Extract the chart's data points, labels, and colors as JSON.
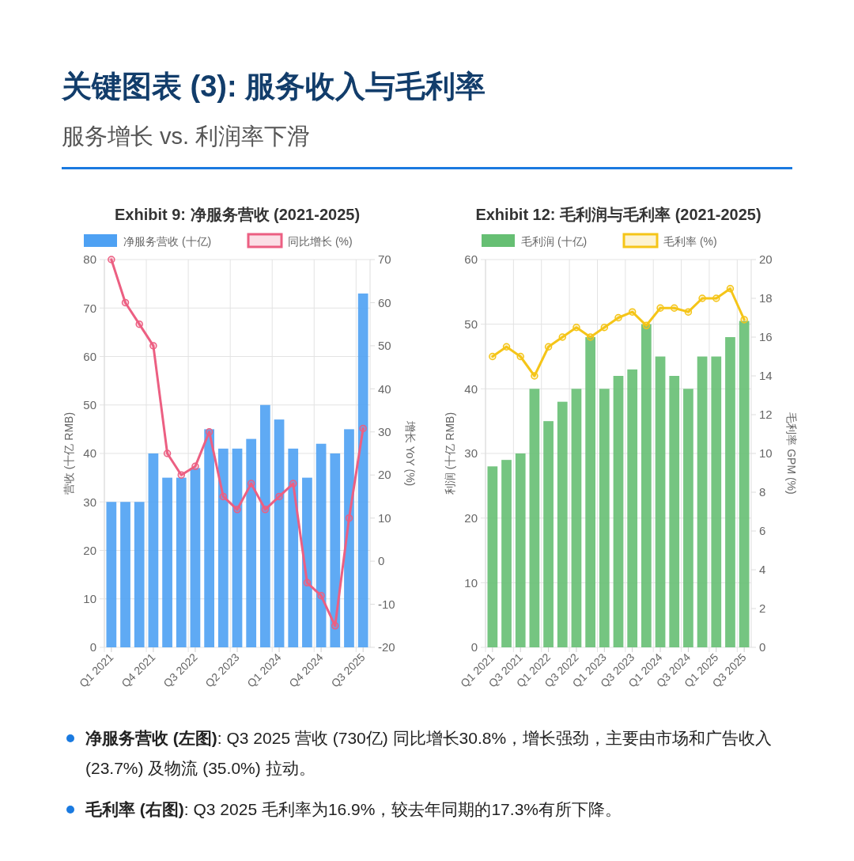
{
  "chart_data": [
    {
      "type": "other",
      "title": "关键图表 (3): 服务收入与毛利率",
      "subtitle": "服务增长 vs. 利润率下滑"
    },
    {
      "type": "bar",
      "title": "Exhibit 9: 净服务营收 (2021-2025)",
      "categories": [
        "Q1 2021",
        null,
        null,
        "Q4 2021",
        null,
        null,
        "Q3 2022",
        null,
        null,
        "Q2 2023",
        null,
        null,
        "Q1 2024",
        null,
        null,
        "Q4 2024",
        null,
        null,
        "Q3 2025"
      ],
      "series": [
        {
          "name": "净服务营收 (十亿)",
          "type": "bar",
          "color": "#4ea1f3",
          "values": [
            30,
            30,
            30,
            40,
            35,
            35,
            37,
            45,
            41,
            41,
            43,
            50,
            47,
            41,
            35,
            42,
            40,
            45,
            73
          ]
        },
        {
          "name": "同比增长 (%)",
          "type": "line",
          "axis": "y2",
          "color": "#ec5f82",
          "values": [
            70,
            60,
            55,
            50,
            25,
            20,
            22,
            30,
            15,
            12,
            18,
            12,
            15,
            18,
            -5,
            -8,
            -15,
            10,
            30.8
          ]
        }
      ],
      "ylabel": "营收 (十亿 RMB)",
      "y2label": "增长 YoY (%)",
      "ylim": [
        0,
        80
      ],
      "yticks": [
        0,
        10,
        20,
        30,
        40,
        50,
        60,
        70,
        80
      ],
      "y2lim": [
        -20,
        70
      ],
      "y2ticks": [
        -20,
        -10,
        0,
        10,
        20,
        30,
        40,
        50,
        60,
        70
      ],
      "legend": "top",
      "grid": true,
      "marker": "circle"
    },
    {
      "type": "bar",
      "title": "Exhibit 12: 毛利润与毛利率 (2021-2025)",
      "categories": [
        "Q1 2021",
        null,
        "Q3 2021",
        null,
        "Q1 2022",
        null,
        "Q3 2022",
        null,
        "Q1 2023",
        null,
        "Q3 2023",
        null,
        "Q1 2024",
        null,
        "Q3 2024",
        null,
        "Q1 2025",
        null,
        "Q3 2025"
      ],
      "series": [
        {
          "name": "毛利润 (十亿)",
          "type": "bar",
          "color": "#66bf73",
          "values": [
            28,
            29,
            30,
            40,
            35,
            38,
            40,
            48,
            40,
            42,
            43,
            50,
            45,
            42,
            40,
            45,
            45,
            48,
            50.5
          ]
        },
        {
          "name": "毛利率 (%)",
          "type": "line",
          "axis": "y2",
          "color": "#f5c518",
          "values": [
            15,
            15.5,
            15,
            14,
            15.5,
            16,
            16.5,
            16,
            16.5,
            17,
            17.3,
            16.6,
            17.5,
            17.5,
            17.3,
            18,
            18,
            18.5,
            16.9
          ]
        }
      ],
      "ylabel": "利润 (十亿 RMB)",
      "y2label": "毛利率 GPM (%)",
      "ylim": [
        0,
        60
      ],
      "yticks": [
        0,
        10,
        20,
        30,
        40,
        50,
        60
      ],
      "y2lim": [
        0,
        20
      ],
      "y2ticks": [
        0,
        2,
        4,
        6,
        8,
        10,
        12,
        14,
        16,
        18,
        20
      ],
      "legend": "top",
      "grid": true,
      "marker": "circle"
    },
    {
      "type": "other",
      "annotations": [
        "净服务营收 (左图): Q3 2025 营收 (730亿) 同比增长30.8%，增长强劲，主要由市场和广告收入 (23.7%) 及物流 (35.0%) 拉动。",
        "毛利率 (右图): Q3 2025 毛利率为16.9%，较去年同期的17.3%有所下降。"
      ]
    }
  ]
}
